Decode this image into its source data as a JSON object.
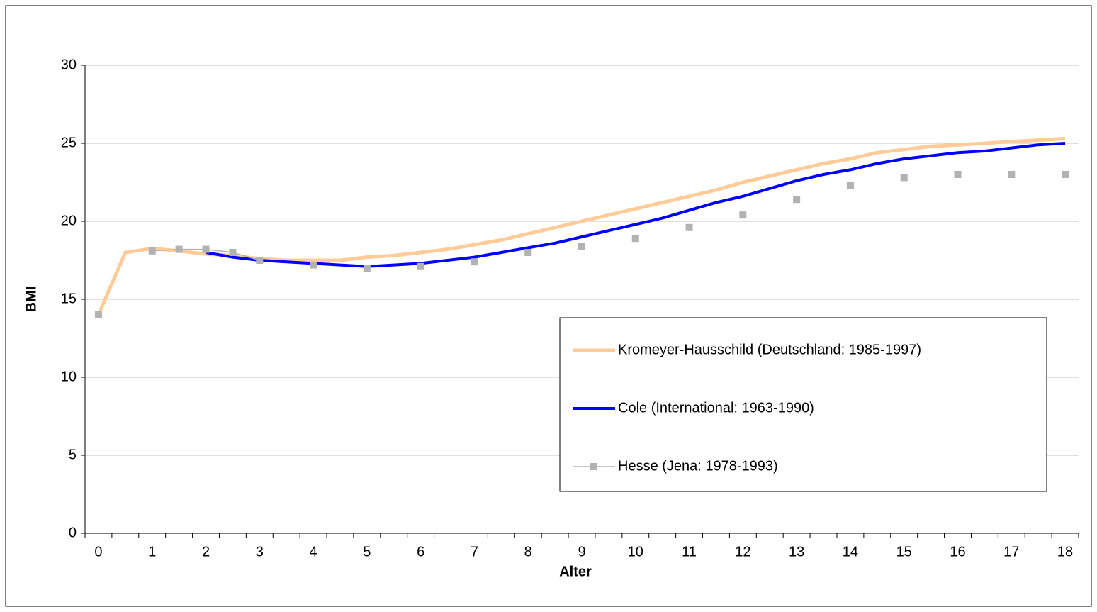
{
  "chart_data": {
    "type": "line",
    "x_label": "Alter",
    "y_label": "BMI",
    "categories": [
      0,
      null,
      1,
      null,
      2,
      null,
      3,
      null,
      4,
      null,
      5,
      null,
      6,
      null,
      7,
      null,
      8,
      null,
      9,
      null,
      10,
      null,
      11,
      null,
      12,
      null,
      13,
      null,
      14,
      null,
      15,
      null,
      16,
      null,
      17,
      null,
      18
    ],
    "series": [
      {
        "name": "Kromeyer-Hausschild (Deutschland: 1985-1997)",
        "color": "#ffcc99",
        "width": 5,
        "values": [
          14,
          18.0,
          18.25,
          18.1,
          17.9,
          17.8,
          17.6,
          17.5,
          17.5,
          17.5,
          17.7,
          17.8,
          18.0,
          18.2,
          18.5,
          18.8,
          19.2,
          19.6,
          20.0,
          20.4,
          20.8,
          21.2,
          21.6,
          22.0,
          22.5,
          22.9,
          23.3,
          23.7,
          24.0,
          24.4,
          24.6,
          24.8,
          24.9,
          25.0,
          25.1,
          25.2,
          25.3
        ]
      },
      {
        "name": "Cole (International: 1963-1990)",
        "color": "#0000ff",
        "width": 4,
        "values": [
          null,
          null,
          null,
          null,
          18.0,
          17.7,
          17.5,
          17.4,
          17.3,
          17.2,
          17.1,
          17.2,
          17.3,
          17.5,
          17.7,
          18.0,
          18.3,
          18.6,
          19.0,
          19.4,
          19.8,
          20.2,
          20.7,
          21.2,
          21.6,
          22.1,
          22.6,
          23.0,
          23.3,
          23.7,
          24.0,
          24.2,
          24.4,
          24.5,
          24.7,
          24.9,
          25.0
        ]
      },
      {
        "name": "Hesse (Jena: 1978-1993)",
        "color": "#b2b2b2",
        "width": 1.5,
        "marker": "square",
        "values": [
          14,
          null,
          18.1,
          18.2,
          18.2,
          18.0,
          17.5,
          null,
          17.2,
          null,
          17.0,
          null,
          17.1,
          null,
          17.4,
          null,
          18.0,
          null,
          18.4,
          null,
          18.9,
          null,
          19.6,
          null,
          20.4,
          null,
          21.4,
          null,
          22.3,
          null,
          22.8,
          null,
          23.0,
          null,
          23.0,
          null,
          23.0
        ]
      }
    ],
    "ylim": [
      0,
      30
    ],
    "yticks": [
      0,
      5,
      10,
      15,
      20,
      25,
      30
    ],
    "grid": true
  }
}
